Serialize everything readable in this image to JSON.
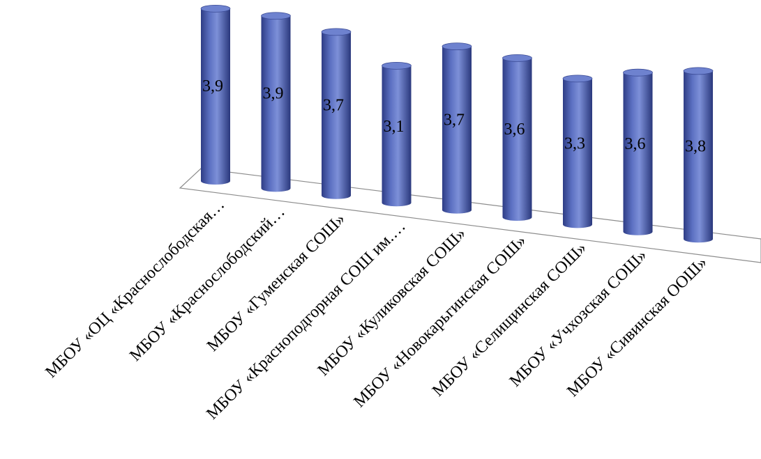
{
  "chart_data": {
    "type": "bar",
    "categories": [
      "МБОУ «ОЦ «Краснослободская…",
      "МБОУ «Краснослободский…",
      "МБОУ «Гуменская СОШ»",
      "МБОУ «Красноподгорная СОШ им.…",
      "МБОУ «Куликовская СОШ»",
      "МБОУ «Новокарьгинская СОШ»",
      "МБОУ «Селищинская СОШ»",
      "МБОУ «Учхозская СОШ»",
      "МБОУ «Сивинская ООШ»"
    ],
    "values": [
      3.9,
      3.9,
      3.7,
      3.1,
      3.7,
      3.6,
      3.3,
      3.6,
      3.8
    ],
    "value_labels": [
      "3,9",
      "3,9",
      "3,7",
      "3,1",
      "3,7",
      "3,6",
      "3,3",
      "3,6",
      "3,8"
    ],
    "ylim": [
      0,
      3.9
    ],
    "style": "3d-cylinder",
    "bar_color": "#5b6fbf",
    "grid": false,
    "legend": "none"
  }
}
